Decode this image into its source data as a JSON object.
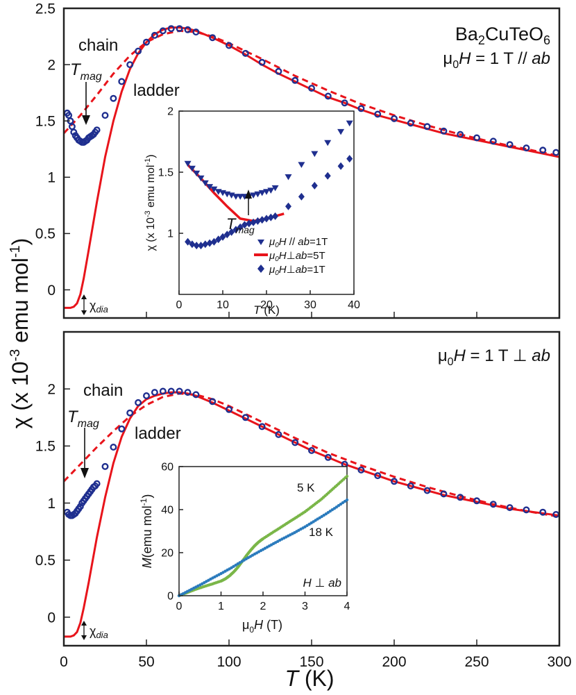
{
  "figure": {
    "ylabel": "χ (x 10",
    "ylabel_exp": "-3",
    "ylabel_units": " emu mol",
    "ylabel_units_exp": "-1",
    "ylabel_close": ")",
    "xlabel_sym": "T",
    "xlabel_unit": " (K)"
  },
  "chart_data": [
    {
      "type": "scatter",
      "panel": "top",
      "annotations": {
        "compound": "Ba",
        "compound_sub1": "2",
        "compound_mid": "CuTeO",
        "compound_sub2": "6",
        "field_mu": "μ",
        "field_sub": "0",
        "field_H": "H",
        "field_rest": " = 1 T // ",
        "field_ab": "ab",
        "chain": "chain",
        "ladder": "ladder",
        "tmag": "T",
        "tmag_sub": "mag",
        "chidia": "χ",
        "chidia_sub": "dia"
      },
      "xlim": [
        0,
        300
      ],
      "ylim": [
        -0.25,
        2.5
      ],
      "xticks": [
        "0",
        "50",
        "100",
        "150",
        "200",
        "250",
        "300"
      ],
      "yticks": [
        "0",
        "0.5",
        "1",
        "1.5",
        "2",
        "2.5"
      ],
      "series": [
        {
          "kind": "data",
          "color": "#1f2f8f",
          "marker": "open-circle",
          "x": [
            2,
            3,
            4,
            5,
            6,
            7,
            8,
            9,
            10,
            11,
            12,
            13,
            14,
            15,
            16,
            17,
            18,
            19,
            20,
            25,
            30,
            35,
            40,
            45,
            50,
            55,
            60,
            65,
            70,
            75,
            80,
            90,
            100,
            110,
            120,
            130,
            140,
            150,
            160,
            170,
            180,
            190,
            200,
            210,
            220,
            230,
            240,
            250,
            260,
            270,
            280,
            290,
            298
          ],
          "y": [
            1.57,
            1.55,
            1.5,
            1.45,
            1.4,
            1.37,
            1.35,
            1.33,
            1.32,
            1.31,
            1.31,
            1.32,
            1.33,
            1.35,
            1.36,
            1.37,
            1.38,
            1.4,
            1.42,
            1.55,
            1.7,
            1.85,
            2.0,
            2.12,
            2.2,
            2.26,
            2.3,
            2.32,
            2.32,
            2.31,
            2.29,
            2.24,
            2.17,
            2.1,
            2.02,
            1.94,
            1.86,
            1.79,
            1.72,
            1.66,
            1.61,
            1.56,
            1.52,
            1.48,
            1.45,
            1.41,
            1.38,
            1.35,
            1.32,
            1.29,
            1.26,
            1.24,
            1.22
          ]
        },
        {
          "kind": "fit",
          "name": "ladder",
          "color": "#e8141b",
          "style": "solid",
          "x": [
            0,
            2,
            4,
            6,
            8,
            10,
            12,
            15,
            20,
            25,
            30,
            35,
            40,
            45,
            50,
            55,
            60,
            65,
            70,
            75,
            80,
            90,
            100,
            110,
            120,
            130,
            140,
            150,
            160,
            170,
            180,
            190,
            200,
            210,
            220,
            230,
            240,
            250,
            260,
            270,
            280,
            290,
            300
          ],
          "y": [
            -0.16,
            -0.16,
            -0.16,
            -0.15,
            -0.12,
            -0.04,
            0.1,
            0.35,
            0.78,
            1.18,
            1.5,
            1.76,
            1.96,
            2.1,
            2.2,
            2.27,
            2.31,
            2.33,
            2.33,
            2.32,
            2.3,
            2.24,
            2.17,
            2.09,
            2.0,
            1.92,
            1.85,
            1.78,
            1.71,
            1.66,
            1.6,
            1.55,
            1.51,
            1.47,
            1.43,
            1.39,
            1.36,
            1.33,
            1.3,
            1.27,
            1.24,
            1.21,
            1.18
          ]
        },
        {
          "kind": "fit",
          "name": "chain",
          "color": "#e8141b",
          "style": "dashed",
          "x": [
            0,
            10,
            20,
            30,
            40,
            50,
            60,
            70,
            80,
            90,
            100,
            120,
            140,
            160,
            180,
            200,
            220,
            240,
            260,
            280,
            300
          ],
          "y": [
            1.39,
            1.55,
            1.73,
            1.92,
            2.08,
            2.2,
            2.27,
            2.3,
            2.29,
            2.25,
            2.19,
            2.05,
            1.9,
            1.77,
            1.65,
            1.55,
            1.46,
            1.38,
            1.31,
            1.25,
            1.19
          ]
        }
      ]
    },
    {
      "type": "scatter",
      "panel": "top-inset",
      "xlabel_sym": "T",
      "xlabel_unit": " (K)",
      "ylabel": "χ (x 10",
      "ylabel_exp": "-3",
      "ylabel_units": " emu mol",
      "ylabel_units_exp": "-1",
      "ylabel_close": ")",
      "tmag": "T",
      "tmag_sub": "mag",
      "xlim": [
        0,
        40
      ],
      "ylim": [
        0.5,
        2
      ],
      "xticks": [
        "0",
        "10",
        "20",
        "30",
        "40"
      ],
      "yticks": [
        "1",
        "1.5",
        "2"
      ],
      "legend": [
        {
          "mu": "μ",
          "sub": "0",
          "H": "H",
          "rel": " // ",
          "ab": "ab",
          "val": "=1T",
          "color": "#1f2f8f",
          "marker": "triangle-down"
        },
        {
          "mu": "μ",
          "sub": "0",
          "H": "H",
          "rel": "⊥",
          "ab": "ab",
          "val": "=5T",
          "color": "#e8141b",
          "marker": "line"
        },
        {
          "mu": "μ",
          "sub": "0",
          "H": "H",
          "rel": "⊥",
          "ab": "ab",
          "val": "=1T",
          "color": "#1f2f8f",
          "marker": "diamond"
        }
      ],
      "series": [
        {
          "color": "#1f2f8f",
          "marker": "triangle-down",
          "x": [
            2,
            3,
            4,
            5,
            6,
            7,
            8,
            9,
            10,
            11,
            12,
            13,
            14,
            15,
            16,
            17,
            18,
            19,
            20,
            21,
            22,
            25,
            28,
            31,
            34,
            37,
            39
          ],
          "y": [
            1.57,
            1.53,
            1.49,
            1.45,
            1.41,
            1.38,
            1.36,
            1.34,
            1.33,
            1.32,
            1.31,
            1.3,
            1.3,
            1.3,
            1.3,
            1.31,
            1.32,
            1.33,
            1.34,
            1.35,
            1.37,
            1.46,
            1.56,
            1.65,
            1.74,
            1.83,
            1.9
          ]
        },
        {
          "color": "#e8141b",
          "marker": "line",
          "x": [
            2,
            5,
            8,
            11,
            14,
            17,
            20,
            24
          ],
          "y": [
            1.56,
            1.45,
            1.33,
            1.22,
            1.12,
            1.1,
            1.12,
            1.16
          ]
        },
        {
          "color": "#1f2f8f",
          "marker": "diamond",
          "x": [
            2,
            3,
            4,
            5,
            6,
            7,
            8,
            9,
            10,
            11,
            12,
            13,
            14,
            15,
            16,
            17,
            18,
            19,
            20,
            21,
            22,
            25,
            28,
            31,
            34,
            37,
            39
          ],
          "y": [
            0.93,
            0.91,
            0.9,
            0.9,
            0.91,
            0.92,
            0.93,
            0.95,
            0.97,
            0.99,
            1.01,
            1.03,
            1.05,
            1.07,
            1.08,
            1.09,
            1.1,
            1.11,
            1.12,
            1.13,
            1.14,
            1.22,
            1.3,
            1.39,
            1.47,
            1.55,
            1.61
          ]
        }
      ]
    },
    {
      "type": "scatter",
      "panel": "bottom",
      "annotations": {
        "field_mu": "μ",
        "field_sub": "0",
        "field_H": "H",
        "field_rest": " = 1 T ⊥ ",
        "field_ab": "ab",
        "chain": "chain",
        "ladder": "ladder",
        "tmag": "T",
        "tmag_sub": "mag",
        "chidia": "χ",
        "chidia_sub": "dia"
      },
      "xlim": [
        0,
        300
      ],
      "ylim": [
        -0.25,
        2.5
      ],
      "xticks": [
        "0",
        "50",
        "100",
        "150",
        "200",
        "250",
        "300"
      ],
      "yticks": [
        "0",
        "0.5",
        "1",
        "1.5",
        "2"
      ],
      "series": [
        {
          "kind": "data",
          "color": "#1f2f8f",
          "marker": "open-circle",
          "x": [
            2,
            3,
            4,
            5,
            6,
            7,
            8,
            9,
            10,
            11,
            12,
            13,
            14,
            15,
            16,
            17,
            18,
            19,
            20,
            25,
            30,
            35,
            40,
            45,
            50,
            55,
            60,
            65,
            70,
            75,
            80,
            90,
            100,
            110,
            120,
            130,
            140,
            150,
            160,
            170,
            180,
            190,
            200,
            210,
            220,
            230,
            240,
            250,
            260,
            270,
            280,
            290,
            298
          ],
          "y": [
            0.92,
            0.9,
            0.89,
            0.89,
            0.9,
            0.91,
            0.93,
            0.95,
            0.97,
            1.0,
            1.02,
            1.04,
            1.06,
            1.08,
            1.1,
            1.12,
            1.14,
            1.15,
            1.17,
            1.32,
            1.49,
            1.65,
            1.79,
            1.88,
            1.94,
            1.97,
            1.98,
            1.98,
            1.98,
            1.97,
            1.95,
            1.89,
            1.82,
            1.75,
            1.67,
            1.6,
            1.53,
            1.46,
            1.4,
            1.34,
            1.29,
            1.24,
            1.19,
            1.15,
            1.11,
            1.08,
            1.05,
            1.02,
            0.99,
            0.96,
            0.94,
            0.92,
            0.9
          ]
        },
        {
          "kind": "fit",
          "name": "ladder",
          "color": "#e8141b",
          "style": "solid",
          "x": [
            0,
            2,
            4,
            6,
            8,
            10,
            12,
            15,
            20,
            25,
            30,
            35,
            40,
            45,
            50,
            55,
            60,
            65,
            70,
            75,
            80,
            90,
            100,
            110,
            120,
            130,
            140,
            150,
            160,
            170,
            180,
            190,
            200,
            210,
            220,
            230,
            240,
            250,
            260,
            270,
            280,
            290,
            300
          ],
          "y": [
            -0.17,
            -0.17,
            -0.17,
            -0.16,
            -0.13,
            -0.05,
            0.08,
            0.3,
            0.7,
            1.05,
            1.35,
            1.58,
            1.74,
            1.85,
            1.91,
            1.94,
            1.96,
            1.97,
            1.97,
            1.96,
            1.94,
            1.88,
            1.81,
            1.74,
            1.67,
            1.6,
            1.53,
            1.46,
            1.4,
            1.34,
            1.29,
            1.24,
            1.19,
            1.15,
            1.11,
            1.07,
            1.04,
            1.01,
            0.98,
            0.95,
            0.93,
            0.91,
            0.89
          ]
        },
        {
          "kind": "fit",
          "name": "chain",
          "color": "#e8141b",
          "style": "dashed",
          "x": [
            0,
            10,
            20,
            30,
            40,
            50,
            60,
            70,
            80,
            90,
            100,
            120,
            140,
            160,
            180,
            200,
            220,
            240,
            260,
            280,
            300
          ],
          "y": [
            1.19,
            1.34,
            1.49,
            1.63,
            1.76,
            1.86,
            1.93,
            1.96,
            1.95,
            1.91,
            1.85,
            1.71,
            1.57,
            1.44,
            1.33,
            1.23,
            1.14,
            1.06,
            0.99,
            0.93,
            0.88
          ]
        }
      ]
    },
    {
      "type": "scatter",
      "panel": "bottom-inset",
      "xlabel_mu": "μ",
      "xlabel_sub": "0",
      "xlabel_H": "H",
      "xlabel_unit": " (T)",
      "ylabel_M": "M",
      "ylabel_units": "(emu mol",
      "ylabel_exp": "-1",
      "ylabel_close": ")",
      "label_5K": "5 K",
      "label_18K": "18 K",
      "label_H": "H",
      "label_perp": " ⊥ ",
      "label_ab": "ab",
      "xlim": [
        0,
        4
      ],
      "ylim": [
        0,
        60
      ],
      "xticks": [
        "0",
        "1",
        "2",
        "3",
        "4"
      ],
      "yticks": [
        "0",
        "20",
        "40",
        "60"
      ],
      "series": [
        {
          "color": "#7ab648",
          "marker": "dot",
          "x": [
            0,
            0.2,
            0.4,
            0.6,
            0.8,
            1.0,
            1.1,
            1.2,
            1.3,
            1.4,
            1.5,
            1.6,
            1.7,
            1.8,
            1.9,
            2.0,
            2.2,
            2.4,
            2.6,
            2.8,
            3.0,
            3.2,
            3.4,
            3.6,
            3.8,
            4.0
          ],
          "y": [
            0,
            1.5,
            3.0,
            4.3,
            5.5,
            6.8,
            7.8,
            9.2,
            11.0,
            13.2,
            15.8,
            18.5,
            21.0,
            23.2,
            25.0,
            26.5,
            29.0,
            31.5,
            34.0,
            36.5,
            39.0,
            42.0,
            45.0,
            48.5,
            52.0,
            55.5
          ]
        },
        {
          "color": "#2b7bbd",
          "marker": "dot",
          "x": [
            0,
            0.25,
            0.5,
            0.75,
            1.0,
            1.25,
            1.5,
            1.75,
            2.0,
            2.25,
            2.5,
            2.75,
            3.0,
            3.25,
            3.5,
            3.75,
            4.0
          ],
          "y": [
            0,
            2.5,
            5.0,
            7.7,
            10.3,
            13.0,
            16.0,
            18.8,
            21.5,
            24.2,
            26.8,
            29.3,
            32.0,
            35.0,
            38.0,
            41.2,
            44.5
          ]
        }
      ]
    }
  ]
}
